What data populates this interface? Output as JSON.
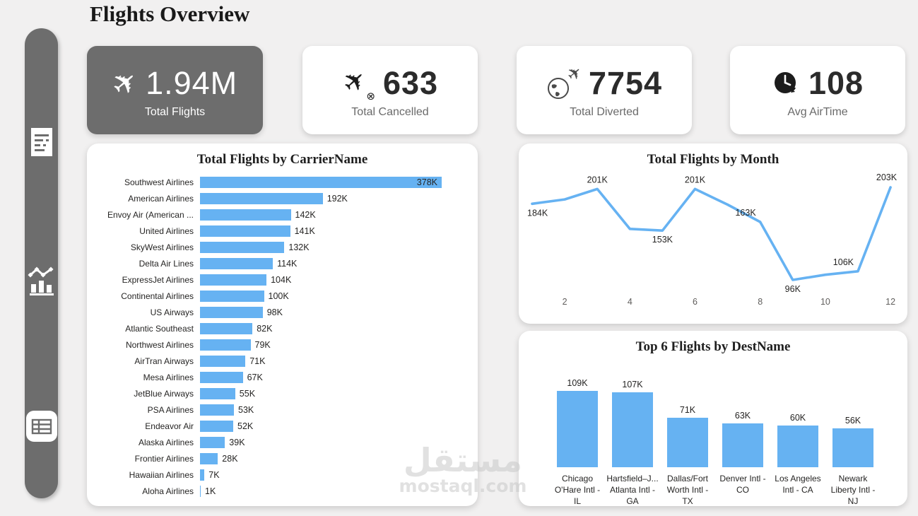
{
  "page": {
    "title": "Flights Overview"
  },
  "colors": {
    "accent_blue": "#66b2f2",
    "dark_gray": "#6d6d6d",
    "text_dark": "#252423",
    "text_gray": "#6a6a6a",
    "background": "#f1f0f0"
  },
  "sidebar": {
    "items": [
      {
        "name": "report-page"
      },
      {
        "name": "charts-page"
      },
      {
        "name": "table-page"
      }
    ]
  },
  "kpis": [
    {
      "icon": "plane-icon",
      "value": "1.94M",
      "label": "Total Flights",
      "highlighted": true
    },
    {
      "icon": "plane-cancelled-icon",
      "value": "633",
      "label": "Total Cancelled",
      "highlighted": false
    },
    {
      "icon": "globe-plane-icon",
      "value": "7754",
      "label": "Total Diverted",
      "highlighted": false
    },
    {
      "icon": "clock-icon",
      "value": "108",
      "label": "Avg AirTime",
      "highlighted": false
    }
  ],
  "watermark": {
    "arabic": "مستقل",
    "latin": "mostaql.com"
  },
  "chart_data": [
    {
      "type": "bar",
      "orientation": "horizontal",
      "title": "Total Flights by CarrierName",
      "categories": [
        "Southwest Airlines",
        "American Airlines",
        "Envoy Air (American ...",
        "United Airlines",
        "SkyWest Airlines",
        "Delta Air Lines",
        "ExpressJet Airlines",
        "Continental Airlines",
        "US Airways",
        "Atlantic Southeast",
        "Northwest Airlines",
        "AirTran Airways",
        "Mesa Airlines",
        "JetBlue Airways",
        "PSA Airlines",
        "Endeavor Air",
        "Alaska Airlines",
        "Frontier Airlines",
        "Hawaiian Airlines",
        "Aloha Airlines"
      ],
      "values": [
        378,
        192,
        142,
        141,
        132,
        114,
        104,
        100,
        98,
        82,
        79,
        71,
        67,
        55,
        53,
        52,
        39,
        28,
        7,
        1
      ],
      "value_labels": [
        "378K",
        "192K",
        "142K",
        "141K",
        "132K",
        "114K",
        "104K",
        "100K",
        "98K",
        "82K",
        "79K",
        "71K",
        "67K",
        "55K",
        "53K",
        "52K",
        "39K",
        "28K",
        "7K",
        "1K"
      ],
      "unit": "K flights",
      "xlim": [
        0,
        378
      ]
    },
    {
      "type": "line",
      "title": "Total Flights by Month",
      "x": [
        1,
        2,
        3,
        4,
        5,
        6,
        7,
        8,
        9,
        10,
        11,
        12
      ],
      "values": [
        184,
        189,
        201,
        155,
        153,
        201,
        183,
        163,
        96,
        102,
        106,
        203
      ],
      "unit": "K flights",
      "x_ticks": [
        "2",
        "4",
        "6",
        "8",
        "10",
        "12"
      ],
      "x_tick_months": [
        2,
        4,
        6,
        8,
        10,
        12
      ],
      "point_labels": [
        {
          "month": 1,
          "text": "184K",
          "pos": "below-left"
        },
        {
          "month": 3,
          "text": "201K",
          "pos": "above"
        },
        {
          "month": 5,
          "text": "153K",
          "pos": "below"
        },
        {
          "month": 6,
          "text": "201K",
          "pos": "above"
        },
        {
          "month": 8,
          "text": "163K",
          "pos": "above-left"
        },
        {
          "month": 9,
          "text": "96K",
          "pos": "below"
        },
        {
          "month": 11,
          "text": "106K",
          "pos": "above-left"
        },
        {
          "month": 12,
          "text": "203K",
          "pos": "above-end"
        }
      ],
      "ylim": [
        90,
        210
      ],
      "grid": false,
      "legend": "none"
    },
    {
      "type": "bar",
      "orientation": "vertical",
      "title": "Top 6 Flights by DestName",
      "categories": [
        [
          "Chicago",
          "O'Hare Intl -",
          "IL"
        ],
        [
          "Hartsfield–J...",
          "Atlanta Intl -",
          "GA"
        ],
        [
          "Dallas/Fort",
          "Worth Intl -",
          "TX"
        ],
        [
          "Denver Intl -",
          "CO"
        ],
        [
          "Los Angeles",
          "Intl - CA"
        ],
        [
          "Newark",
          "Liberty Intl -",
          "NJ"
        ]
      ],
      "values": [
        109,
        107,
        71,
        63,
        60,
        56
      ],
      "value_labels": [
        "109K",
        "107K",
        "71K",
        "63K",
        "60K",
        "56K"
      ],
      "unit": "K flights",
      "ylim": [
        0,
        115
      ]
    }
  ]
}
